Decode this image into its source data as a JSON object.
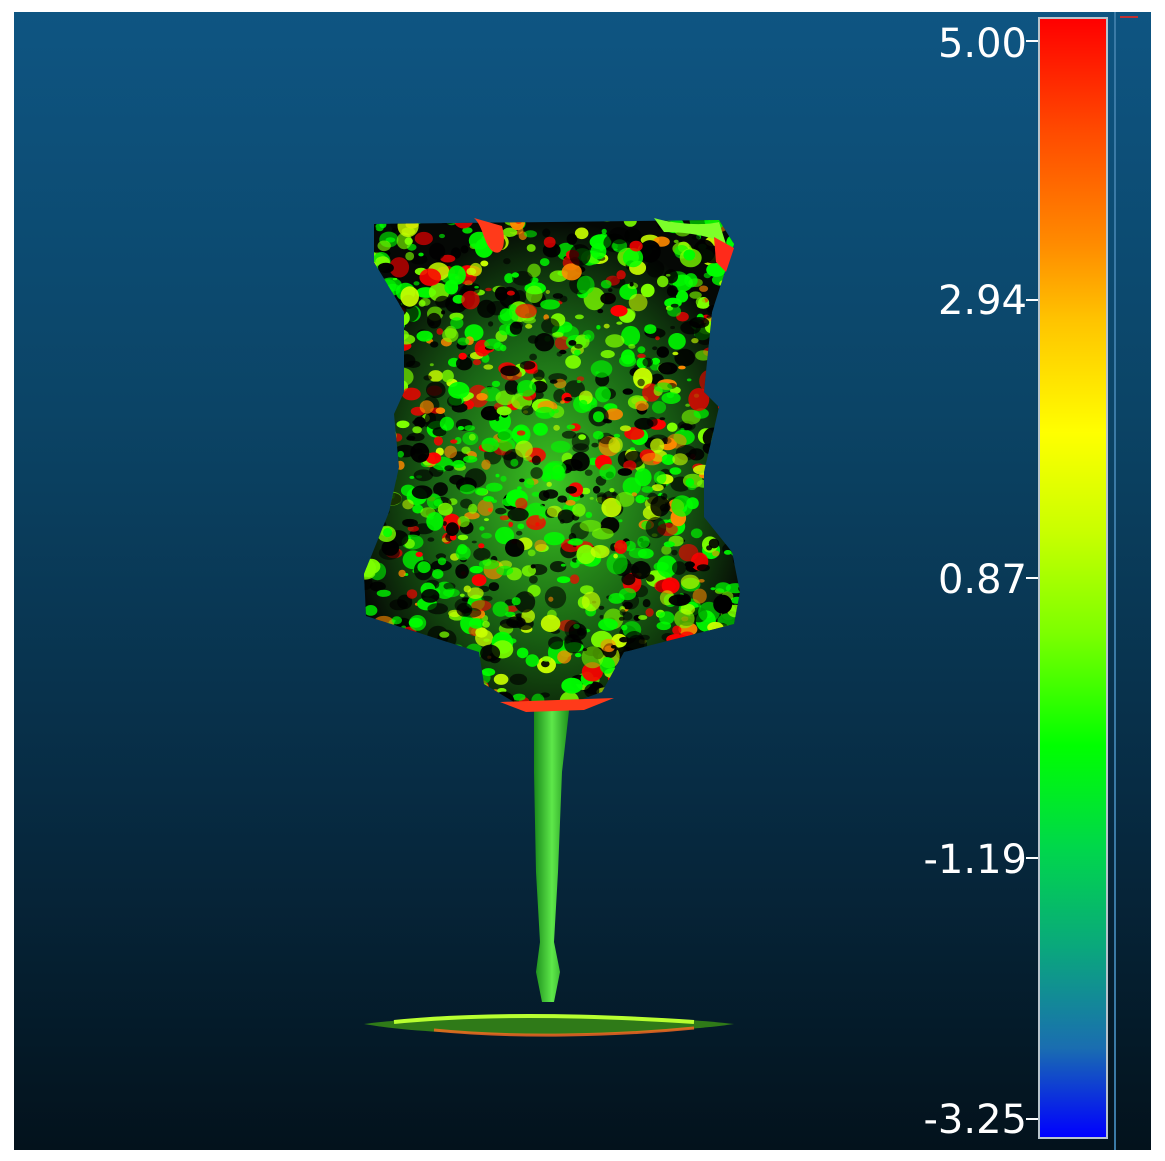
{
  "colorbar": {
    "min": -3.25,
    "max": 5.0,
    "ticks": [
      "5.00",
      "2.94",
      "0.87",
      "-1.19",
      "-3.25"
    ],
    "tick_values": [
      5.0,
      2.94,
      0.87,
      -1.19,
      -3.25
    ],
    "gradient_colors": [
      "#ff0000",
      "#ff8a00",
      "#ffff00",
      "#7cff00",
      "#00ff00",
      "#0aa87c",
      "#0000ff"
    ]
  },
  "viewport": {
    "background_top": "#0e5582",
    "background_bottom": "#03121c",
    "object": "goblet-point-cloud",
    "point_colors": [
      "#00ff00",
      "#7cff00",
      "#c8ff00",
      "#ffff00",
      "#ff8a00",
      "#ff0000",
      "#000000"
    ]
  }
}
